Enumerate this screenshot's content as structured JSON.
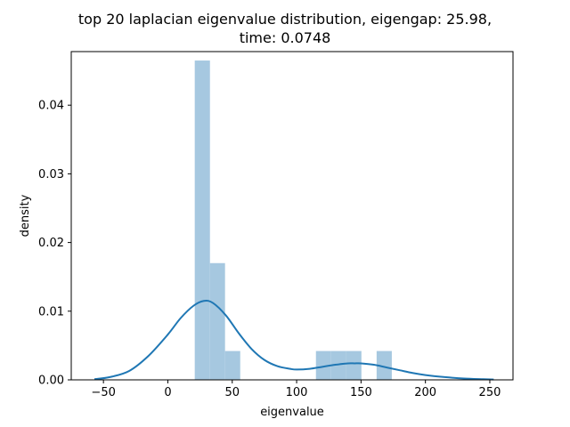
{
  "chart_data": {
    "type": "bar",
    "title_line1": "top 20 laplacian eigenvalue distribution, eigengap: 25.98,",
    "title_line2": "time: 0.0748",
    "xlabel": "eigenvalue",
    "ylabel": "density",
    "xlim": [
      -75,
      268
    ],
    "ylim": [
      0,
      0.0478
    ],
    "xticks": [
      -50,
      0,
      50,
      100,
      150,
      200,
      250
    ],
    "xtick_labels": [
      "−50",
      "0",
      "50",
      "100",
      "150",
      "200",
      "250"
    ],
    "yticks": [
      0,
      0.01,
      0.02,
      0.03,
      0.04
    ],
    "ytick_labels": [
      "0.00",
      "0.01",
      "0.02",
      "0.03",
      "0.04"
    ],
    "bar_color": "#a6c8e0",
    "kde_color": "#1f77b4",
    "histogram": {
      "bin_edges": [
        20.9,
        32.7,
        44.4,
        56.2,
        68.0,
        79.7,
        91.5,
        103.3,
        115.0,
        126.8,
        138.6,
        150.3,
        162.1,
        173.9
      ],
      "densities": [
        0.0465,
        0.017,
        0.0042,
        0,
        0,
        0,
        0,
        0,
        0.0042,
        0.0042,
        0.0042,
        0,
        0.0042
      ]
    },
    "kde": {
      "x": [
        -57,
        -45,
        -30,
        -15,
        0,
        10,
        20,
        28,
        35,
        45,
        55,
        65,
        75,
        85,
        95,
        100,
        110,
        120,
        130,
        140,
        145,
        150,
        160,
        170,
        180,
        190,
        200,
        215,
        230,
        245,
        253
      ],
      "y": [
        0.0001,
        0.0004,
        0.0013,
        0.0035,
        0.0066,
        0.009,
        0.0108,
        0.0115,
        0.0112,
        0.0094,
        0.0068,
        0.0045,
        0.0029,
        0.002,
        0.0016,
        0.0015,
        0.0016,
        0.0019,
        0.0022,
        0.0024,
        0.0024,
        0.0024,
        0.0022,
        0.0018,
        0.0014,
        0.001,
        0.0007,
        0.0004,
        0.0002,
        0.0001,
        5e-05
      ]
    }
  }
}
